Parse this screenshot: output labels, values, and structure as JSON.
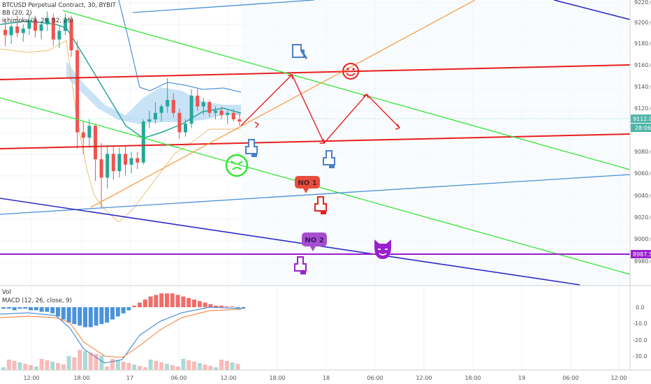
{
  "legend": {
    "symbol": "BTCUSD Perpetual Contract, 30, BYBIT",
    "bb": "BB (20, 2)",
    "ichimoku": "Ichimoku (9, 26, 52, 26)"
  },
  "volume_label": "Vol",
  "macd_label": "MACD (12, 26, close, 9)",
  "colors": {
    "up": "#26a69a",
    "down": "#ef5350",
    "ichimoku_cloud": "#bcdcf4",
    "trend_green": "#33e633",
    "trend_red": "#e81e1e",
    "trend_blue": "#4a90d9",
    "trend_navy": "#2b2bc9",
    "trend_orange": "#f5a04a",
    "trend_purple": "#9b1ecf",
    "hand_blue": "#4a7fc9",
    "hand_red": "#e81e1e",
    "hand_purple": "#9b1ecf"
  },
  "price_axis": {
    "ticks": [
      "9220.0",
      "9200.0",
      "9180.0",
      "9160.0",
      "9140.0",
      "9120.0",
      "9100.0",
      "9080.0",
      "9060.0",
      "9040.0",
      "9020.0",
      "9000.0",
      "8980.0"
    ],
    "current_price": "9112.0",
    "countdown": "28:06",
    "marked_price": "8987.5"
  },
  "macd_axis": {
    "ticks": [
      "0.0",
      "-10.0",
      "-20.0",
      "-30.0"
    ]
  },
  "time_axis": {
    "ticks": [
      "12:00",
      "18:00",
      "17",
      "06:00",
      "12:00",
      "18:00",
      "18",
      "06:00",
      "12:00",
      "18:00",
      "19",
      "06:00",
      "12:00"
    ]
  },
  "annotations": {
    "no1": "NO 1",
    "no2": "NO 2"
  },
  "chart_data": {
    "type": "candlestick",
    "instrument": "BTCUSD Perpetual Contract",
    "timeframe": "30",
    "exchange": "BYBIT",
    "ylim": [
      8970,
      9222
    ],
    "last_price": 9112.0,
    "horizontal_level": 8987.5,
    "candles": [
      [
        9195,
        9205,
        9180,
        9190
      ],
      [
        9190,
        9200,
        9182,
        9198
      ],
      [
        9198,
        9208,
        9188,
        9192
      ],
      [
        9192,
        9200,
        9184,
        9196
      ],
      [
        9196,
        9210,
        9190,
        9204
      ],
      [
        9204,
        9208,
        9188,
        9194
      ],
      [
        9194,
        9202,
        9186,
        9200
      ],
      [
        9200,
        9212,
        9194,
        9206
      ],
      [
        9206,
        9210,
        9180,
        9186
      ],
      [
        9186,
        9198,
        9178,
        9194
      ],
      [
        9194,
        9210,
        9190,
        9205
      ],
      [
        9205,
        9208,
        9170,
        9176
      ],
      [
        9176,
        9185,
        9085,
        9100
      ],
      [
        9100,
        9110,
        9080,
        9095
      ],
      [
        9095,
        9112,
        9086,
        9106
      ],
      [
        9106,
        9108,
        9055,
        9075
      ],
      [
        9075,
        9090,
        9030,
        9058
      ],
      [
        9058,
        9088,
        9048,
        9080
      ],
      [
        9080,
        9088,
        9056,
        9064
      ],
      [
        9064,
        9086,
        9058,
        9080
      ],
      [
        9080,
        9088,
        9060,
        9070
      ],
      [
        9070,
        9082,
        9062,
        9076
      ],
      [
        9076,
        9082,
        9066,
        9072
      ],
      [
        9072,
        9112,
        9070,
        9110
      ],
      [
        9110,
        9120,
        9104,
        9112
      ],
      [
        9112,
        9128,
        9108,
        9118
      ],
      [
        9118,
        9126,
        9110,
        9124
      ],
      [
        9124,
        9150,
        9118,
        9130
      ],
      [
        9130,
        9136,
        9114,
        9118
      ],
      [
        9118,
        9122,
        9094,
        9100
      ],
      [
        9100,
        9112,
        9096,
        9108
      ],
      [
        9108,
        9140,
        9104,
        9134
      ],
      [
        9134,
        9140,
        9120,
        9124
      ],
      [
        9124,
        9132,
        9116,
        9128
      ],
      [
        9128,
        9130,
        9114,
        9118
      ],
      [
        9118,
        9124,
        9112,
        9120
      ],
      [
        9120,
        9124,
        9112,
        9116
      ],
      [
        9116,
        9120,
        9108,
        9118
      ],
      [
        9118,
        9122,
        9110,
        9112
      ],
      [
        9112,
        9118,
        9106,
        9110
      ]
    ],
    "macd_histogram_range": [
      -35,
      5
    ]
  }
}
